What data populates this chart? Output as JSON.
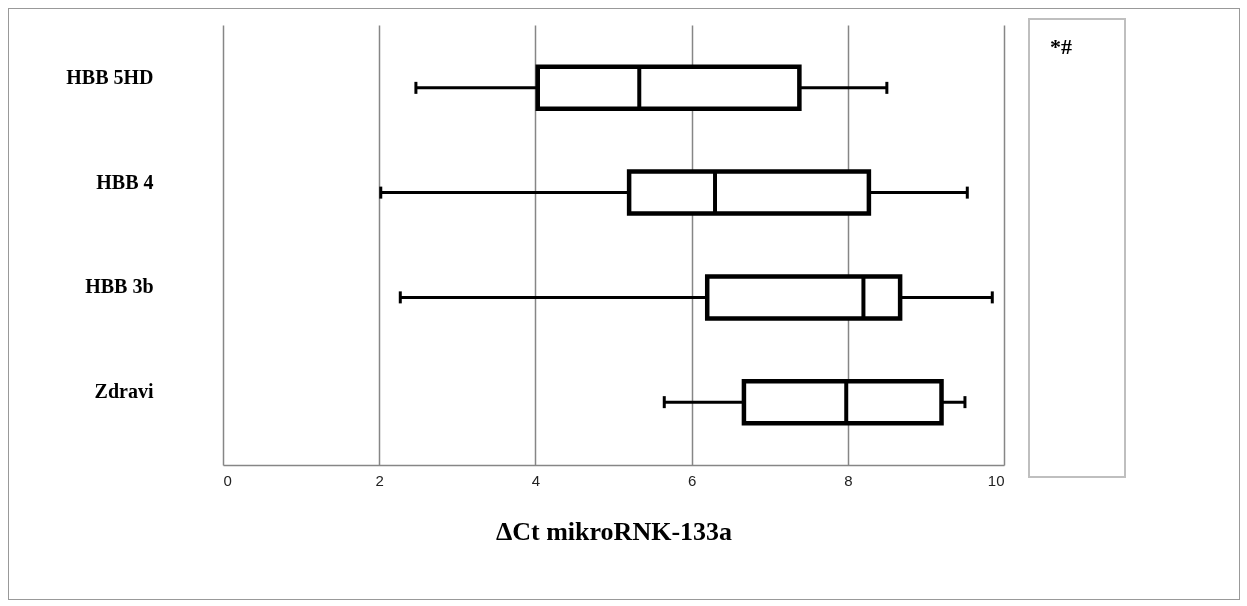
{
  "chart_data": {
    "type": "box",
    "orientation": "horizontal",
    "xlabel": "ΔCt  mikroRNK-133a",
    "categories": [
      "HBB 5HD",
      "HBB 4",
      "HBB 3b",
      "Zdravi"
    ],
    "boxes": [
      {
        "low": 2.47,
        "q1": 4.03,
        "median": 5.33,
        "q3": 7.38,
        "high": 8.5
      },
      {
        "low": 2.02,
        "q1": 5.2,
        "median": 6.3,
        "q3": 8.27,
        "high": 9.53
      },
      {
        "low": 2.27,
        "q1": 6.2,
        "median": 8.2,
        "q3": 8.67,
        "high": 9.85
      },
      {
        "low": 5.65,
        "q1": 6.67,
        "median": 7.98,
        "q3": 9.2,
        "high": 9.5
      }
    ],
    "xlim": [
      0,
      10
    ],
    "xticks": [
      0,
      2,
      4,
      6,
      8,
      10
    ],
    "grid": "x",
    "annotations": [
      "*#"
    ]
  }
}
